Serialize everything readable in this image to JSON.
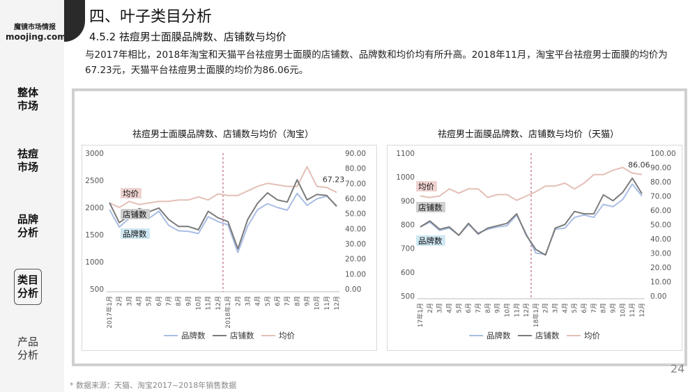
{
  "brand": {
    "cn": "魔镜市场情报",
    "en": "moojing.com"
  },
  "nav": [
    "整体市场",
    "祛痘市场",
    "品牌分析",
    "类目分析",
    "产品分析"
  ],
  "title": "四、叶子类目分析",
  "subtitle": "4.5.2 祛痘男士面膜品牌数、店铺数与均价",
  "description": "与2017年相比，2018年淘宝和天猫平台祛痘男士面膜的店铺数、品牌数和均价均有所升高。2018年11月，淘宝平台祛痘男士面膜的均价为67.23元，天猫平台祛痘男士面膜的均价为86.06元。",
  "footnote": "* 数据来源：天猫、淘宝2017~2018年销售数据",
  "page_number": "24",
  "colors": {
    "brand_series": "#a9bde4",
    "shop_series": "#7b7b7b",
    "price_series": "#e3bfb7",
    "label_price_bg": "#eed3d1",
    "label_shop_bg": "#cfcfcf",
    "label_brand_bg": "#cfe8f3"
  },
  "chart_data": [
    {
      "type": "line",
      "title": "祛痘男士面膜品牌数、店铺数与均价（淘宝）",
      "x": [
        "2017年1月",
        "2月",
        "3月",
        "4月",
        "5月",
        "6月",
        "7月",
        "8月",
        "9月",
        "10月",
        "11月",
        "12月",
        "2018年1月",
        "2月",
        "3月",
        "4月",
        "5月",
        "6月",
        "7月",
        "8月",
        "9月",
        "10月",
        "11月",
        "12月"
      ],
      "y_left": {
        "ylim": [
          500,
          3000
        ],
        "ticks": [
          "500",
          "1000",
          "1500",
          "2000",
          "2500",
          "3000"
        ]
      },
      "y_right": {
        "ylim": [
          0,
          90
        ],
        "ticks": [
          "0.00",
          "10.00",
          "20.00",
          "30.00",
          "40.00",
          "50.00",
          "60.00",
          "70.00",
          "80.00",
          "90.00"
        ]
      },
      "series": [
        {
          "name": "品牌数",
          "axis": "left",
          "values": [
            1960,
            1640,
            1800,
            1840,
            1800,
            1930,
            1670,
            1570,
            1560,
            1520,
            1830,
            1740,
            1680,
            1170,
            1660,
            1960,
            2070,
            2000,
            1950,
            2260,
            2040,
            2160,
            2210,
            2030
          ]
        },
        {
          "name": "店铺数",
          "axis": "left",
          "values": [
            2090,
            1720,
            1850,
            1980,
            1920,
            1990,
            1780,
            1650,
            1650,
            1590,
            1930,
            1810,
            1740,
            1240,
            1780,
            2080,
            2270,
            2140,
            2100,
            2510,
            2140,
            2240,
            2220,
            2020
          ]
        },
        {
          "name": "均价",
          "axis": "right",
          "values": [
            57,
            54,
            58,
            56,
            57,
            58,
            58,
            59,
            59,
            61,
            59,
            63,
            62,
            62,
            65,
            68,
            70,
            69,
            68,
            68,
            81,
            68,
            67.23,
            64
          ]
        }
      ],
      "annotations": [
        {
          "text": "67.23",
          "series": "均价",
          "index": 22
        }
      ],
      "series_labels": [
        "均价",
        "店铺数",
        "品牌数"
      ],
      "legend": "bottom",
      "grid": false
    },
    {
      "type": "line",
      "title": "祛痘男士面膜品牌数、店铺数与均价（天猫）",
      "x": [
        "17年1月",
        "2月",
        "3月",
        "4月",
        "5月",
        "6月",
        "7月",
        "8月",
        "9月",
        "10月",
        "11月",
        "12月",
        "18年1月",
        "2月",
        "3月",
        "4月",
        "5月",
        "6月",
        "7月",
        "8月",
        "9月",
        "10月",
        "11月",
        "12月"
      ],
      "y_left": {
        "ylim": [
          500,
          1100
        ],
        "ticks": [
          "500",
          "600",
          "700",
          "800",
          "900",
          "1000",
          "1100"
        ]
      },
      "y_right": {
        "ylim": [
          0,
          100
        ],
        "ticks": [
          "0.00",
          "10.00",
          "20.00",
          "30.00",
          "40.00",
          "50.00",
          "60.00",
          "70.00",
          "80.00",
          "90.00",
          "100.00"
        ]
      },
      "series": [
        {
          "name": "品牌数",
          "axis": "left",
          "values": [
            790,
            810,
            775,
            785,
            755,
            800,
            765,
            780,
            790,
            795,
            840,
            760,
            680,
            675,
            780,
            785,
            830,
            840,
            830,
            885,
            875,
            905,
            970,
            920
          ]
        },
        {
          "name": "店铺数",
          "axis": "left",
          "values": [
            790,
            815,
            780,
            790,
            755,
            805,
            760,
            785,
            795,
            805,
            845,
            755,
            695,
            672,
            785,
            800,
            855,
            845,
            845,
            925,
            900,
            935,
            995,
            930
          ]
        },
        {
          "name": "均价",
          "axis": "right",
          "values": [
            70,
            69,
            70,
            75,
            72,
            75,
            75,
            69,
            71,
            71,
            67,
            70,
            73,
            77,
            77,
            79,
            75,
            79,
            85,
            85,
            88,
            90,
            86.06,
            85
          ]
        }
      ],
      "annotations": [
        {
          "text": "86.06",
          "series": "均价",
          "index": 22
        }
      ],
      "series_labels": [
        "均价",
        "店铺数",
        "品牌数"
      ],
      "legend": "bottom",
      "grid": false
    }
  ]
}
